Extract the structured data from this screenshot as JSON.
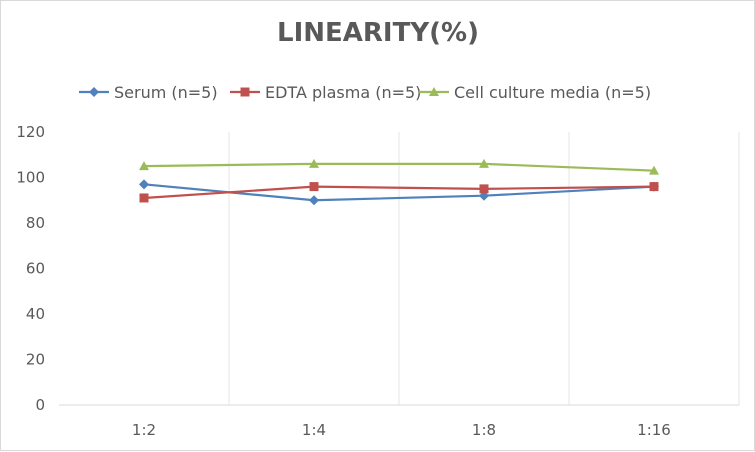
{
  "chart_data": {
    "type": "line",
    "title": "LINEARITY(%)",
    "categories": [
      "1:2",
      "1:4",
      "1:8",
      "1:16"
    ],
    "ylim": [
      0,
      120
    ],
    "yticks": [
      0,
      20,
      40,
      60,
      80,
      100,
      120
    ],
    "grid": "vertical",
    "legend": "top",
    "series": [
      {
        "name": "Serum (n=5)",
        "color": "#4f81bd",
        "marker": "diamond",
        "values": [
          97,
          90,
          92,
          96
        ]
      },
      {
        "name": "EDTA plasma (n=5)",
        "color": "#c0504d",
        "marker": "square",
        "values": [
          91,
          96,
          95,
          96
        ]
      },
      {
        "name": "Cell culture media (n=5)",
        "color": "#9bbb59",
        "marker": "triangle",
        "values": [
          105,
          106,
          106,
          103
        ]
      }
    ]
  }
}
